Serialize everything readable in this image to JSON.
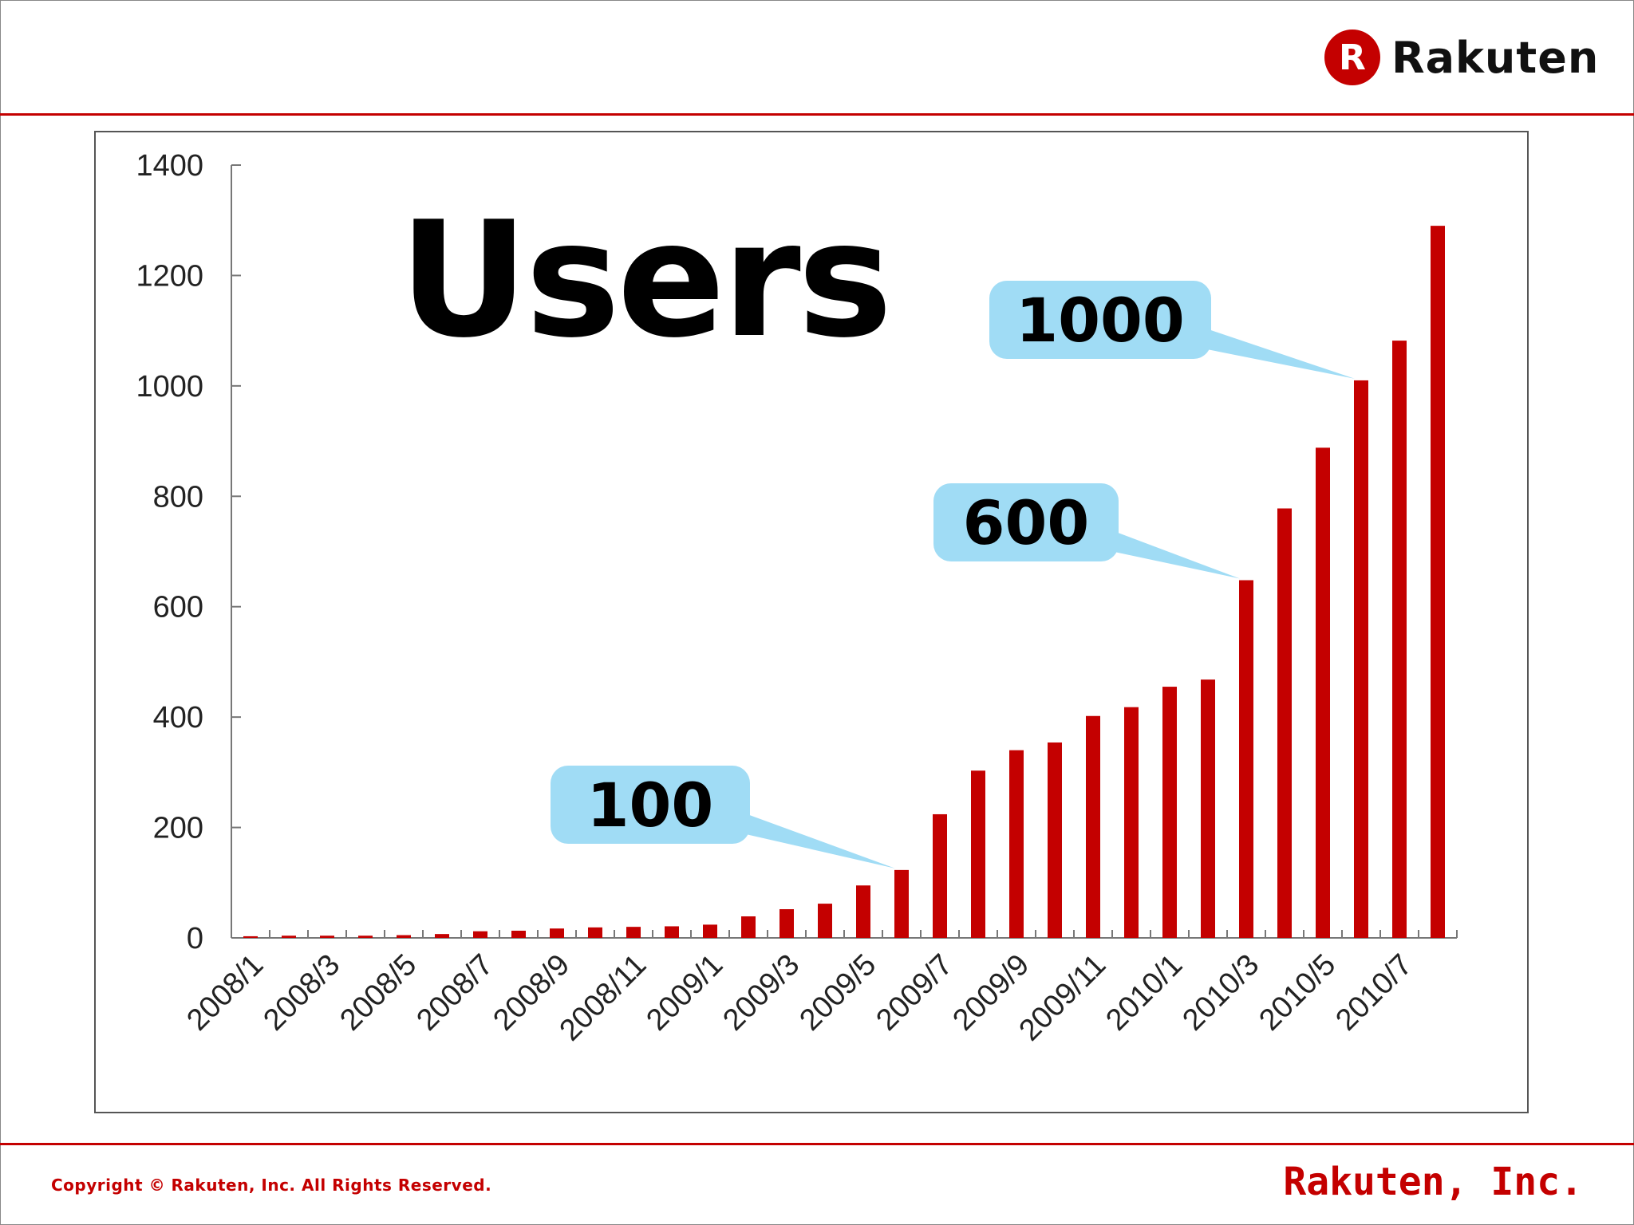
{
  "brand": {
    "logo_letter": "R",
    "logo_text": "Rakuten",
    "color": "#c40000"
  },
  "footer": {
    "copyright": "Copyright © Rakuten, Inc. All Rights Reserved.",
    "company": "Rakuten, Inc."
  },
  "chart_data": {
    "type": "bar",
    "title": "Users",
    "xlabel": "",
    "ylabel": "",
    "ylim": [
      0,
      1400
    ],
    "yticks": [
      0,
      200,
      400,
      600,
      800,
      1000,
      1200,
      1400
    ],
    "grid": false,
    "bar_color": "#c40000",
    "categories": [
      "2008/1",
      "2008/2",
      "2008/3",
      "2008/4",
      "2008/5",
      "2008/6",
      "2008/7",
      "2008/8",
      "2008/9",
      "2008/10",
      "2008/11",
      "2008/12",
      "2009/1",
      "2009/2",
      "2009/3",
      "2009/4",
      "2009/5",
      "2009/6",
      "2009/7",
      "2009/8",
      "2009/9",
      "2009/10",
      "2009/11",
      "2009/12",
      "2010/1",
      "2010/2",
      "2010/3",
      "2010/4",
      "2010/5",
      "2010/6",
      "2010/7",
      "2010/8"
    ],
    "x_tick_labels": [
      "2008/1",
      "2008/3",
      "2008/5",
      "2008/7",
      "2008/9",
      "2008/11",
      "2009/1",
      "2009/3",
      "2009/5",
      "2009/7",
      "2009/9",
      "2009/11",
      "2010/1",
      "2010/3",
      "2010/5",
      "2010/7"
    ],
    "values": [
      3,
      4,
      4,
      4,
      5,
      7,
      12,
      13,
      17,
      19,
      20,
      21,
      24,
      39,
      52,
      62,
      95,
      123,
      224,
      303,
      340,
      354,
      402,
      418,
      455,
      468,
      648,
      778,
      888,
      1010,
      1082,
      1290
    ],
    "callouts": [
      {
        "label": "100",
        "category": "2009/6",
        "fill": "#a0dcf5"
      },
      {
        "label": "600",
        "category": "2010/3",
        "fill": "#a0dcf5"
      },
      {
        "label": "1000",
        "category": "2010/6",
        "fill": "#a0dcf5"
      }
    ]
  }
}
